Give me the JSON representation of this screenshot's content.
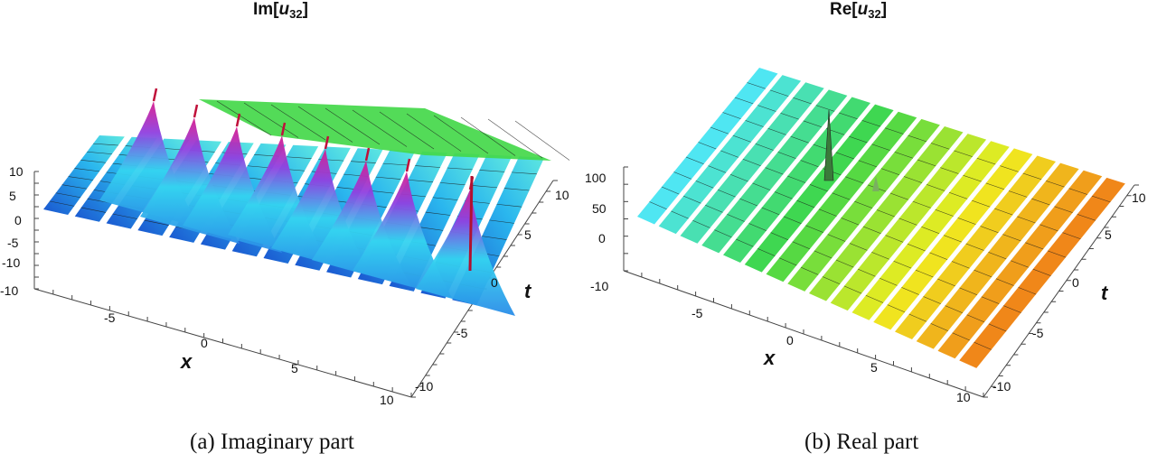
{
  "chart_data": [
    {
      "type": "surface3d",
      "title": "Im[u32]",
      "title_main": "Im[",
      "title_var": "u",
      "title_sub": "32",
      "title_close": "]",
      "caption": "(a)  Imaginary part",
      "xlabel": "x",
      "ylabel": "t",
      "x_ticks": [
        "-10",
        "-5",
        "0",
        "5",
        "10"
      ],
      "t_ticks": [
        "-10",
        "-5",
        "0",
        "5",
        "10"
      ],
      "z_ticks": [
        "10",
        "5",
        "0",
        "-5",
        "-10"
      ],
      "xlim": [
        -10,
        10
      ],
      "tlim": [
        -10,
        10
      ],
      "zlim": [
        -10,
        10
      ],
      "peaks_x": [
        -9,
        -6,
        -3,
        0,
        3,
        6,
        9
      ],
      "colormap": [
        "#1f5fd6",
        "#20c8f0",
        "#9a3ce0",
        "#d01a8c",
        "#3ed648"
      ]
    },
    {
      "type": "surface3d",
      "title": "Re[u32]",
      "title_main": "Re[",
      "title_var": "u",
      "title_sub": "32",
      "title_close": "]",
      "caption": "(b)  Real part",
      "xlabel": "x",
      "ylabel": "t",
      "x_ticks": [
        "-10",
        "-5",
        "0",
        "5",
        "10"
      ],
      "t_ticks": [
        "-10",
        "-5",
        "0",
        "5",
        "10"
      ],
      "z_ticks": [
        "100",
        "50",
        "0"
      ],
      "xlim": [
        -10,
        10
      ],
      "tlim": [
        -10,
        10
      ],
      "zlim": [
        -20,
        110
      ],
      "colormap": [
        "#4fe6f2",
        "#3ed648",
        "#f0ee20",
        "#f07018"
      ]
    }
  ]
}
